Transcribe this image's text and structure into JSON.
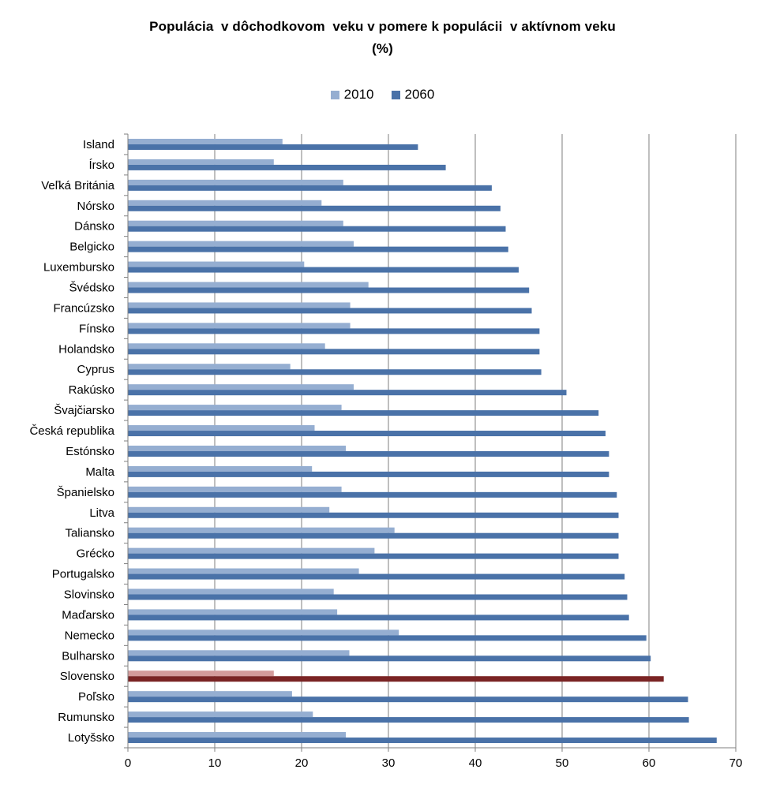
{
  "chart_data": {
    "type": "bar",
    "orientation": "horizontal",
    "title": "Populácia  v dôchodkovom  veku v pomere k populácii  v aktívnom veku",
    "subtitle": "(%)",
    "categories": [
      "Island",
      "Írsko",
      "Veľká Británia",
      "Nórsko",
      "Dánsko",
      "Belgicko",
      "Luxembursko",
      "Švédsko",
      "Francúzsko",
      "Fínsko",
      "Holandsko",
      "Cyprus",
      "Rakúsko",
      "Švajčiarsko",
      "Česká republika",
      "Estónsko",
      "Malta",
      "Španielsko",
      "Litva",
      "Taliansko",
      "Grécko",
      "Portugalsko",
      "Slovinsko",
      "Maďarsko",
      "Nemecko",
      "Bulharsko",
      "Slovensko",
      "Poľsko",
      "Rumunsko",
      "Lotyšsko"
    ],
    "series": [
      {
        "name": "2010",
        "color": "#95aed1",
        "values": [
          17.8,
          16.8,
          24.8,
          22.3,
          24.8,
          26.0,
          20.3,
          27.7,
          25.6,
          25.6,
          22.7,
          18.7,
          26.0,
          24.6,
          21.5,
          25.1,
          21.2,
          24.6,
          23.2,
          30.7,
          28.4,
          26.6,
          23.7,
          24.1,
          31.2,
          25.5,
          16.8,
          18.9,
          21.3,
          25.1
        ]
      },
      {
        "name": "2060",
        "color": "#4a72a8",
        "values": [
          33.4,
          36.6,
          41.9,
          42.9,
          43.5,
          43.8,
          45.0,
          46.2,
          46.5,
          47.4,
          47.4,
          47.6,
          50.5,
          54.2,
          55.0,
          55.4,
          55.4,
          56.3,
          56.5,
          56.5,
          56.5,
          57.2,
          57.5,
          57.7,
          59.7,
          60.2,
          61.7,
          64.5,
          64.6,
          67.8
        ]
      }
    ],
    "highlight": {
      "category": "Slovensko",
      "color_2010": "#d39b9b",
      "color_2060": "#7a2424"
    },
    "xlim": [
      0,
      70
    ],
    "xticks": [
      0,
      10,
      20,
      30,
      40,
      50,
      60,
      70
    ],
    "grid": true,
    "legend_position": "top"
  }
}
